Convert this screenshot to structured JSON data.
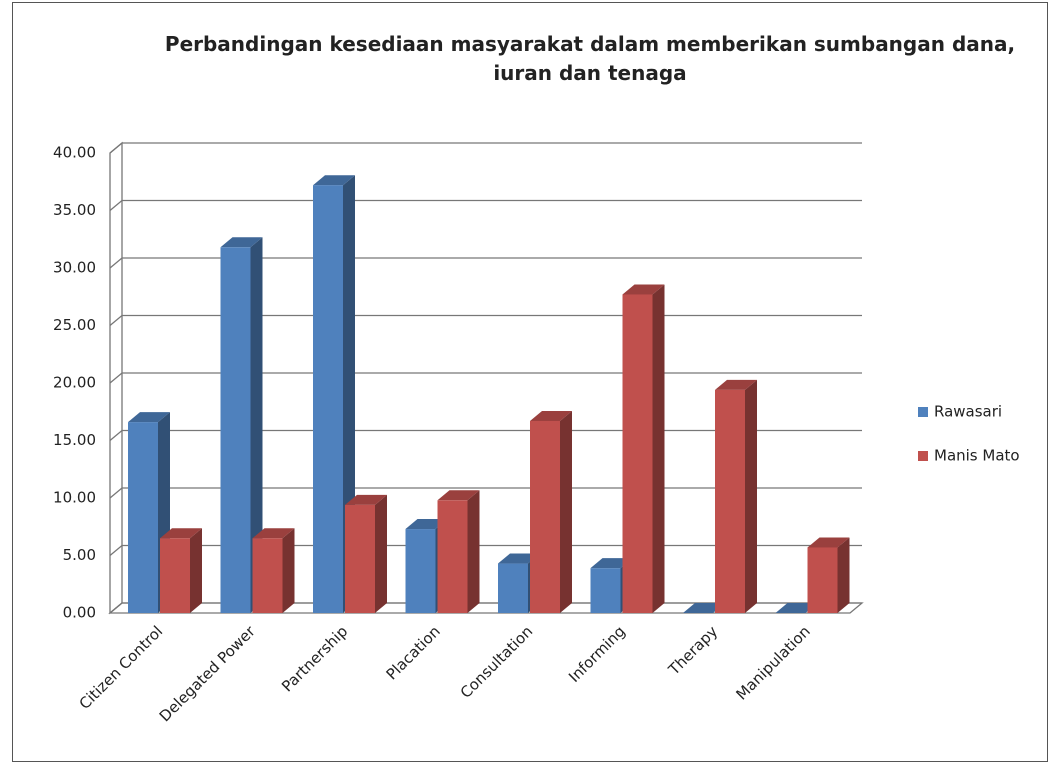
{
  "chart_data": {
    "type": "bar3d",
    "title": "Perbandingan kesediaan masyarakat dalam memberikan sumbangan dana, iuran dan tenaga",
    "categories": [
      "Citizen Control",
      "Delegated Power",
      "Partnership",
      "Placation",
      "Consultation",
      "Informing",
      "Therapy",
      "Manipulation"
    ],
    "series": [
      {
        "name": "Rawasari",
        "color": "#4f81bd",
        "values": [
          16.6,
          31.8,
          37.2,
          7.3,
          4.3,
          3.9,
          0,
          0
        ]
      },
      {
        "name": "Manis Mato",
        "color": "#c0504d",
        "values": [
          6.5,
          6.5,
          9.4,
          9.8,
          16.7,
          27.7,
          19.4,
          5.7
        ]
      }
    ],
    "ylim": [
      0,
      40
    ],
    "yticks": [
      {
        "value": 0,
        "label": "0.00"
      },
      {
        "value": 5,
        "label": "5.00"
      },
      {
        "value": 10,
        "label": "10.00"
      },
      {
        "value": 15,
        "label": "15.00"
      },
      {
        "value": 20,
        "label": "20.00"
      },
      {
        "value": 25,
        "label": "25.00"
      },
      {
        "value": 30,
        "label": "30.00"
      },
      {
        "value": 35,
        "label": "35.00"
      },
      {
        "value": 40,
        "label": "40.00"
      }
    ],
    "grid": true,
    "legend": "right"
  }
}
